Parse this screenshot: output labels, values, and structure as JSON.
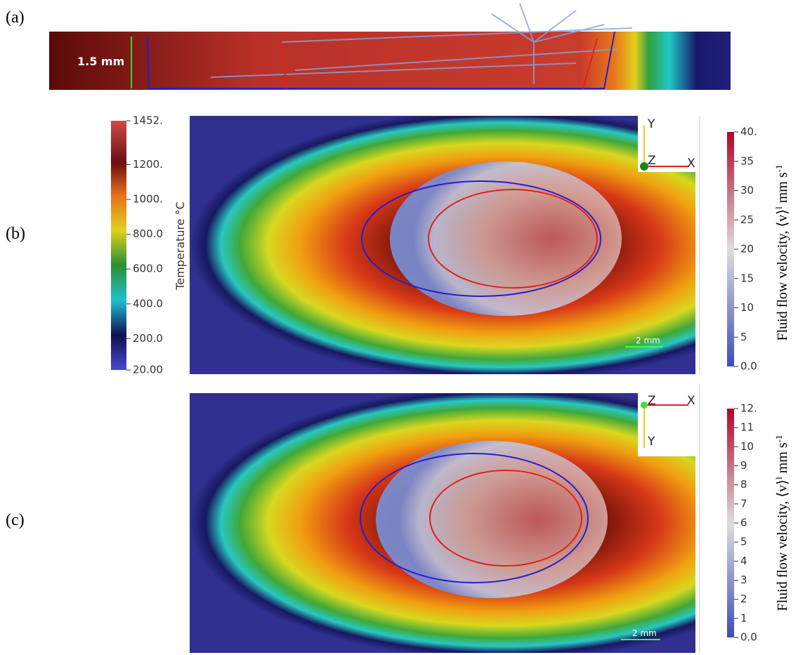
{
  "panels": {
    "a": {
      "label": "(a)",
      "scale_label": "1.5 mm"
    },
    "b": {
      "label": "(b)",
      "scale_label": "2 mm",
      "axis_labels": [
        "Y",
        "Z",
        "X"
      ]
    },
    "c": {
      "label": "(c)",
      "scale_label": "2 mm",
      "axis_labels": [
        "Z",
        "X",
        "Y"
      ]
    }
  },
  "temperature_colorbar": {
    "title": "Temperature °C",
    "ticks": [
      "1452.",
      "1200.",
      "1000.",
      "800.0",
      "600.0",
      "400.0",
      "200.0",
      "20.00"
    ]
  },
  "velocity_colorbar_b": {
    "title_parts": [
      "Fluid flow velocity, ⟨v⟩",
      "l",
      " mm s",
      "-1"
    ],
    "ticks": [
      "40.",
      "35",
      "30",
      "25",
      "20",
      "15",
      "10",
      "5",
      "0.0"
    ]
  },
  "velocity_colorbar_c": {
    "title_parts": [
      "Fluid flow velocity, ⟨v⟩",
      "l",
      " mm s",
      "-1"
    ],
    "ticks": [
      "12.",
      "11",
      "10",
      "9",
      "8",
      "7",
      "6",
      "5",
      "4",
      "3",
      "2",
      "1",
      "0.0"
    ]
  }
}
